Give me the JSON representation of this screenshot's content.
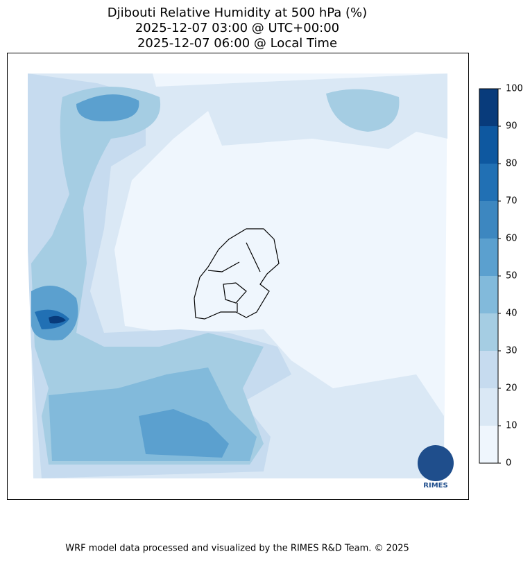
{
  "title": [
    "Djibouti Relative Humidity at 500 hPa (%)",
    "2025-12-07 03:00 @ UTC+00:00",
    "2025-12-07 06:00 @ Local Time"
  ],
  "colorbar": {
    "ticks": [
      0,
      10,
      20,
      30,
      40,
      50,
      60,
      70,
      80,
      90,
      100
    ],
    "colors": [
      "#eff6fd",
      "#dae8f5",
      "#c6dbef",
      "#a5cde3",
      "#82badb",
      "#5ba0cf",
      "#3d87c0",
      "#2170b4",
      "#0e58a0",
      "#083b7b"
    ]
  },
  "logo": "RIMES",
  "footer": "WRF model data processed and visualized by the RIMES R&D Team. © 2025"
}
